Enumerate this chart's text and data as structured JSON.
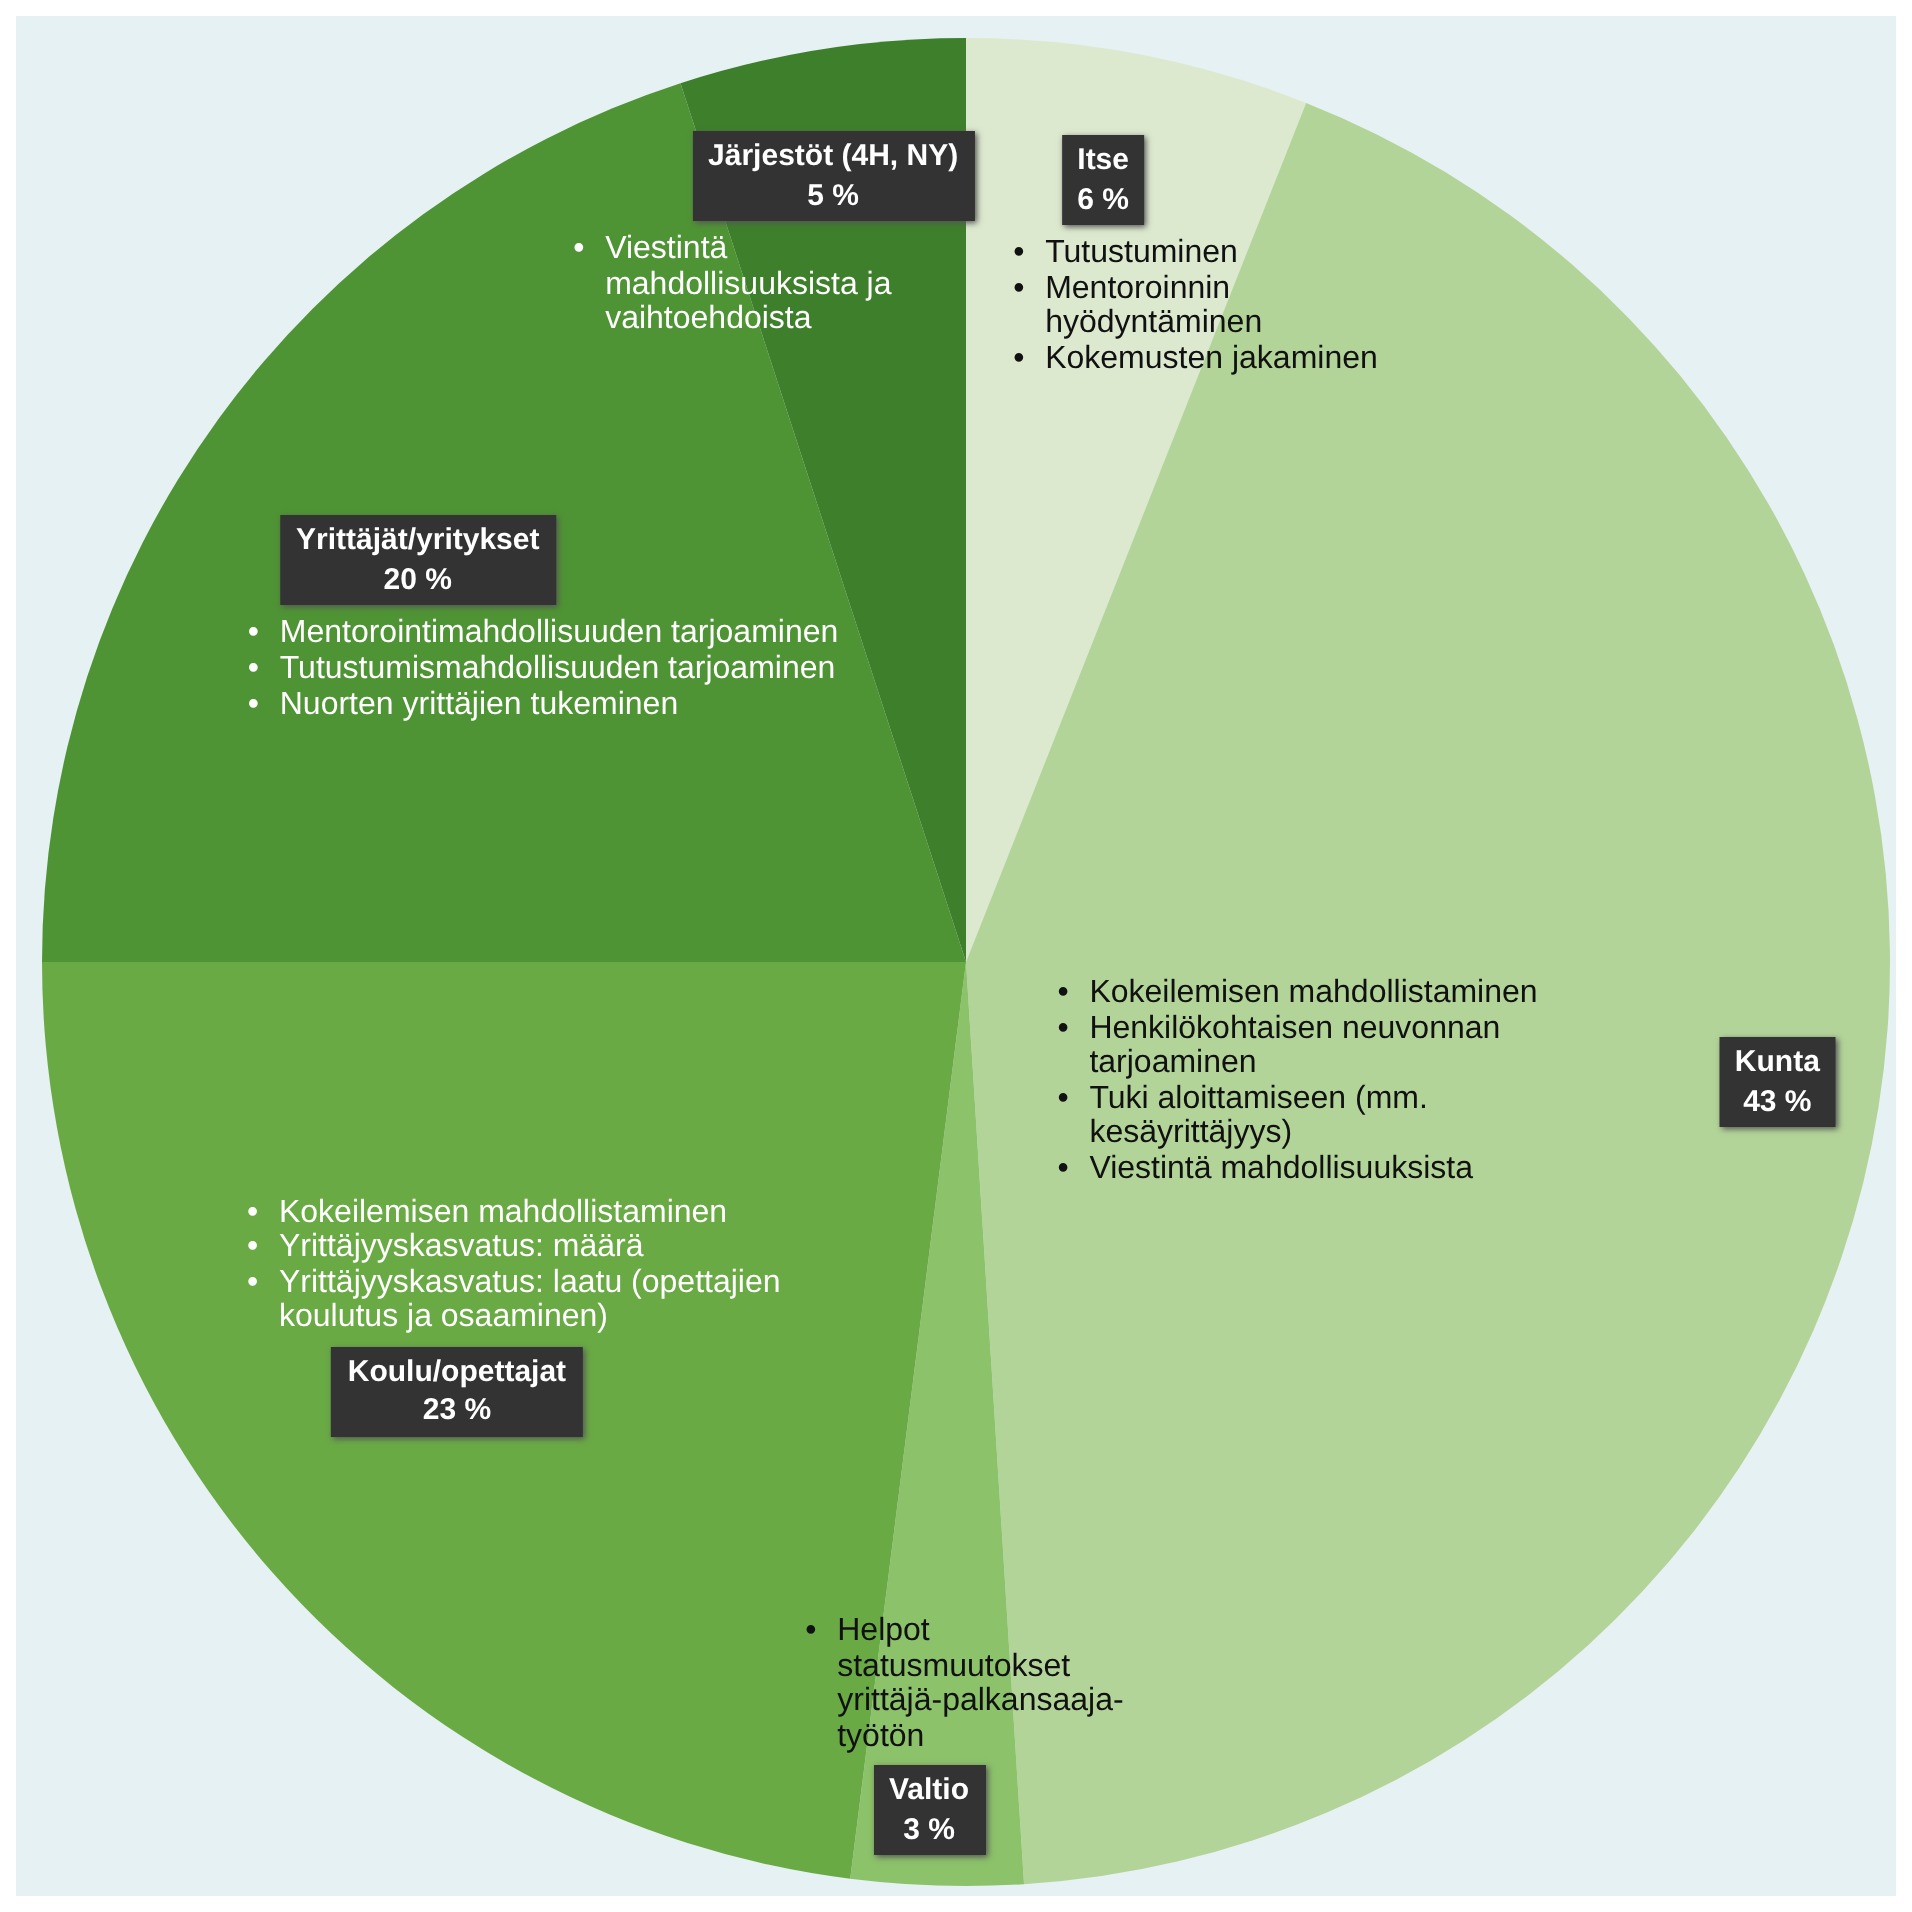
{
  "chart_data": {
    "type": "pie",
    "categories": [
      "Itse",
      "Kunta",
      "Valtio",
      "Koulu/opettajat",
      "Yrittäjät/yritykset",
      "Järjestöt (4H, NY)"
    ],
    "values": [
      6,
      43,
      3,
      23,
      20,
      5
    ],
    "value_labels": [
      "6 %",
      "43 %",
      "3 %",
      "23 %",
      "20 %",
      "5 %"
    ],
    "colors": [
      "#dde9cf",
      "#b3d499",
      "#8cc26a",
      "#6aaa45",
      "#4f9434",
      "#3e7f2b"
    ],
    "legend": false,
    "annotations": [
      "• Tutustuminen\n• Mentoroinnin hyödyntäminen\n• Kokemusten jakaminen",
      "• Kokeilemisen mahdollistaminen\n• Henkilökohtaisen neuvonnan tarjoaminen\n• Tuki aloittamiseen (mm. kesäyrittäjyys)\n• Viestintä mahdollisuuksista",
      "• Helpot statusmuutokset yrittäjä-palkansaaja-työtön",
      "• Kokeilemisen mahdollistaminen\n• Yrittäjyyskasvatus: määrä\n• Yrittäjyyskasvatus: laatu (opettajien koulutus ja osaaminen)",
      "• Mentorointimahdollisuuden tarjoaminen\n• Tutustumismahdollisuuden tarjoaminen\n• Nuorten yrittäjien tukeminen",
      "• Viestintä mahdollisuuksista ja vaihtoehdoista"
    ]
  }
}
